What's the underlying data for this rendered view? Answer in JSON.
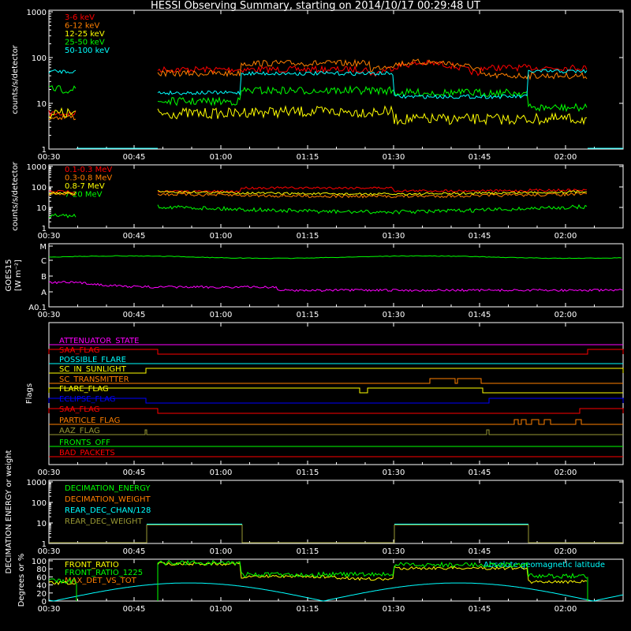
{
  "title": "HESSI Observing Summary, starting on 2014/10/17 00:29:48 UT",
  "x_tick_labels": [
    "00:30",
    "00:45",
    "01:00",
    "01:15",
    "01:30",
    "01:45",
    "02:00"
  ],
  "chart_data": [
    {
      "type": "line",
      "ylabel": "counts/s/detector",
      "yscale": "log",
      "ylim": [
        1,
        1000
      ],
      "y_tick_labels": [
        "1",
        "10",
        "100",
        "1000"
      ],
      "series": [
        {
          "name": "3-6 keV",
          "color": "#ff0000"
        },
        {
          "name": "6-12 keV",
          "color": "#ff7f00"
        },
        {
          "name": "12-25 keV",
          "color": "#ffff00"
        },
        {
          "name": "25-50 keV",
          "color": "#00ff00"
        },
        {
          "name": "50-100 keV",
          "color": "#00ffff"
        }
      ]
    },
    {
      "type": "line",
      "ylabel": "counts/s/detector",
      "yscale": "log",
      "ylim": [
        1,
        1000
      ],
      "y_tick_labels": [
        "1",
        "10",
        "100",
        "1000"
      ],
      "series": [
        {
          "name": "0.1-0.3 MeV",
          "color": "#ff0000"
        },
        {
          "name": "0.3-0.8 MeV",
          "color": "#ff7f00"
        },
        {
          "name": "0.8-7 MeV",
          "color": "#ffff00"
        },
        {
          "name": "7-20 MeV",
          "color": "#00ff00"
        }
      ]
    },
    {
      "type": "line",
      "ylabel": "GOES15 [W m⁻²]",
      "y_tick_labels": [
        "A0.1",
        "A",
        "B",
        "C",
        "M"
      ],
      "series": [
        {
          "name": "",
          "color": "#00ff00"
        },
        {
          "name": "",
          "color": "#ff00ff"
        }
      ]
    },
    {
      "type": "line",
      "ylabel": "Flags",
      "series": [
        {
          "name": "ATTENUATOR_STATE",
          "color": "#ff00ff"
        },
        {
          "name": "SAA_FLAG",
          "color": "#ff0000"
        },
        {
          "name": "POSSIBLE_FLARE",
          "color": "#00ffff"
        },
        {
          "name": "SC_IN_SUNLIGHT",
          "color": "#ffff00"
        },
        {
          "name": "SC_TRANSMITTER",
          "color": "#ff7f00"
        },
        {
          "name": "FLARE_FLAG",
          "color": "#ffff00"
        },
        {
          "name": "ECLIPSE_FLAG",
          "color": "#0000ff"
        },
        {
          "name": "SAA_FLAG",
          "color": "#ff0000"
        },
        {
          "name": "PARTICLE_FLAG",
          "color": "#ff7f00"
        },
        {
          "name": "AAZ_FLAG",
          "color": "#999933"
        },
        {
          "name": "FRONTS_OFF",
          "color": "#00ff00"
        },
        {
          "name": "BAD_PACKETS",
          "color": "#ff0000"
        }
      ]
    },
    {
      "type": "line",
      "ylabel": "DECIMATION ENERGY or weight",
      "yscale": "log",
      "ylim": [
        1,
        1000
      ],
      "y_tick_labels": [
        "1",
        "10",
        "100",
        "1000"
      ],
      "series": [
        {
          "name": "DECIMATION_ENERGY",
          "color": "#00ff00"
        },
        {
          "name": "DECIMATION_WEIGHT",
          "color": "#ff7f00"
        },
        {
          "name": "REAR_DEC_CHAN/128",
          "color": "#00ffff"
        },
        {
          "name": "REAR_DEC_WEIGHT",
          "color": "#999933"
        }
      ]
    },
    {
      "type": "line",
      "ylabel": "Degrees or %",
      "ylim": [
        0,
        100
      ],
      "y_tick_labels": [
        "0",
        "20",
        "40",
        "60",
        "80",
        "100"
      ],
      "series": [
        {
          "name": "FRONT_RATIO",
          "color": "#ffff00"
        },
        {
          "name": "FRONT_RATIO_1225",
          "color": "#00ff00"
        },
        {
          "name": "MAX_DET_VS_TOT",
          "color": "#ff7f00"
        },
        {
          "name": "Absolute geomagnetic latitude",
          "color": "#00ffff"
        }
      ]
    }
  ]
}
